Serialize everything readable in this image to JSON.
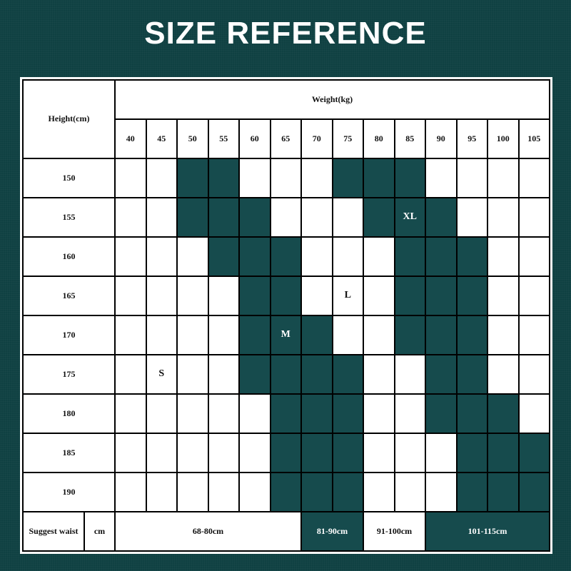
{
  "title": "SIZE REFERENCE",
  "header": {
    "height_label": "Height(cm)",
    "weight_label": "Weight(kg)"
  },
  "weights": [
    "40",
    "45",
    "50",
    "55",
    "60",
    "65",
    "70",
    "75",
    "80",
    "85",
    "90",
    "95",
    "100",
    "105"
  ],
  "colors": {
    "background": "#0f4142",
    "fill": "#164b4d",
    "cell": "#ffffff"
  },
  "rows": [
    {
      "height": "150",
      "filled": [
        0,
        0,
        1,
        1,
        0,
        0,
        0,
        1,
        1,
        1,
        0,
        0,
        0,
        0
      ]
    },
    {
      "height": "155",
      "filled": [
        0,
        0,
        1,
        1,
        1,
        0,
        0,
        0,
        1,
        1,
        1,
        0,
        0,
        0
      ]
    },
    {
      "height": "160",
      "filled": [
        0,
        0,
        0,
        1,
        1,
        1,
        0,
        0,
        0,
        1,
        1,
        1,
        0,
        0
      ]
    },
    {
      "height": "165",
      "filled": [
        0,
        0,
        0,
        0,
        1,
        1,
        0,
        0,
        0,
        1,
        1,
        1,
        0,
        0
      ]
    },
    {
      "height": "170",
      "filled": [
        0,
        0,
        0,
        0,
        1,
        1,
        1,
        0,
        0,
        1,
        1,
        1,
        0,
        0
      ]
    },
    {
      "height": "175",
      "filled": [
        0,
        0,
        0,
        0,
        1,
        1,
        1,
        1,
        0,
        0,
        1,
        1,
        0,
        0
      ]
    },
    {
      "height": "180",
      "filled": [
        0,
        0,
        0,
        0,
        0,
        1,
        1,
        1,
        0,
        0,
        1,
        1,
        1,
        0
      ]
    },
    {
      "height": "185",
      "filled": [
        0,
        0,
        0,
        0,
        0,
        1,
        1,
        1,
        0,
        0,
        0,
        1,
        1,
        1
      ]
    },
    {
      "height": "190",
      "filled": [
        0,
        0,
        0,
        0,
        0,
        1,
        1,
        1,
        0,
        0,
        0,
        1,
        1,
        1
      ]
    }
  ],
  "size_labels": [
    {
      "size": "XL",
      "row": 1,
      "col": 9
    },
    {
      "size": "L",
      "row": 3,
      "col": 7
    },
    {
      "size": "M",
      "row": 4,
      "col": 5
    },
    {
      "size": "S",
      "row": 5,
      "col": 1
    }
  ],
  "waist": {
    "label": "Suggest waist",
    "unit": "cm",
    "ranges": [
      {
        "text": "68-80cm",
        "span": 6,
        "filled": false
      },
      {
        "text": "81-90cm",
        "span": 2,
        "filled": true
      },
      {
        "text": "91-100cm",
        "span": 2,
        "filled": false
      },
      {
        "text": "101-115cm",
        "span": 4,
        "filled": true
      }
    ]
  }
}
